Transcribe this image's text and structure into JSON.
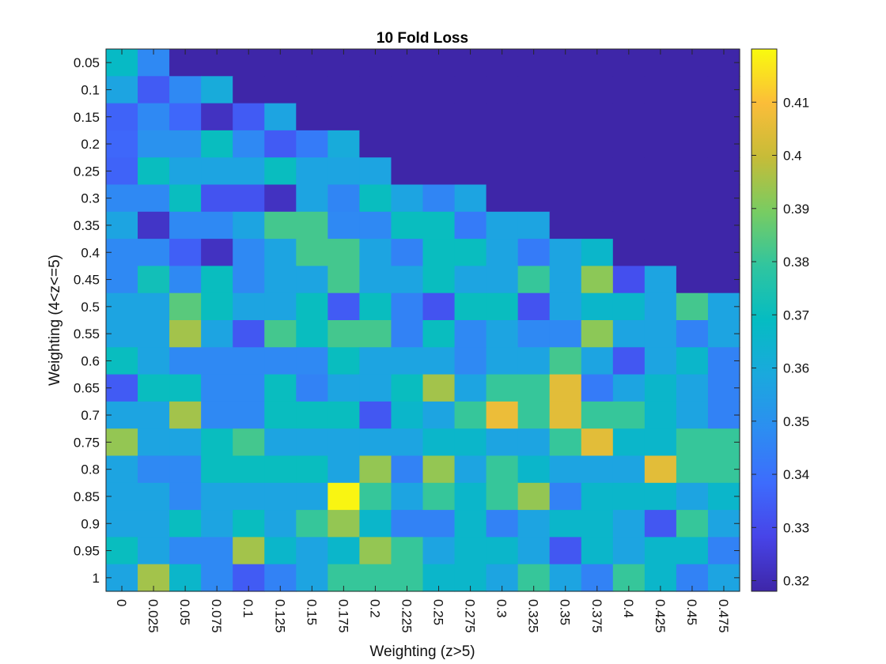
{
  "chart_data": {
    "type": "heatmap",
    "title": "10 Fold Loss",
    "xlabel": "Weighting (z>5)",
    "ylabel": "Weighting (4<z<=5)",
    "x": [
      "0",
      "0.025",
      "0.05",
      "0.075",
      "0.1",
      "0.125",
      "0.15",
      "0.175",
      "0.2",
      "0.225",
      "0.25",
      "0.275",
      "0.3",
      "0.325",
      "0.35",
      "0.375",
      "0.4",
      "0.425",
      "0.45",
      "0.475"
    ],
    "y": [
      "0.05",
      "0.1",
      "0.15",
      "0.2",
      "0.25",
      "0.3",
      "0.35",
      "0.4",
      "0.45",
      "0.5",
      "0.55",
      "0.6",
      "0.65",
      "0.7",
      "0.75",
      "0.8",
      "0.85",
      "0.9",
      "0.95",
      "1"
    ],
    "colorbar": {
      "range": [
        0.318,
        0.42
      ],
      "ticks": [
        "0.32",
        "0.33",
        "0.34",
        "0.35",
        "0.36",
        "0.37",
        "0.38",
        "0.39",
        "0.4",
        "0.41"
      ],
      "colormap": "parula"
    },
    "fill_value": 0.318,
    "values": [
      [
        0.368,
        0.347,
        null,
        null,
        null,
        null,
        null,
        null,
        null,
        null,
        null,
        null,
        null,
        null,
        null,
        null,
        null,
        null,
        null,
        null
      ],
      [
        0.357,
        0.334,
        0.347,
        0.36,
        null,
        null,
        null,
        null,
        null,
        null,
        null,
        null,
        null,
        null,
        null,
        null,
        null,
        null,
        null,
        null
      ],
      [
        0.336,
        0.347,
        0.337,
        0.322,
        0.334,
        0.357,
        null,
        null,
        null,
        null,
        null,
        null,
        null,
        null,
        null,
        null,
        null,
        null,
        null,
        null
      ],
      [
        0.337,
        0.35,
        0.35,
        0.37,
        0.347,
        0.334,
        0.343,
        0.36,
        null,
        null,
        null,
        null,
        null,
        null,
        null,
        null,
        null,
        null,
        null,
        null
      ],
      [
        0.336,
        0.37,
        0.357,
        0.357,
        0.357,
        0.37,
        0.357,
        0.357,
        0.357,
        null,
        null,
        null,
        null,
        null,
        null,
        null,
        null,
        null,
        null,
        null
      ],
      [
        0.347,
        0.347,
        0.37,
        0.332,
        0.332,
        0.322,
        0.357,
        0.346,
        0.37,
        0.357,
        0.346,
        0.357,
        null,
        null,
        null,
        null,
        null,
        null,
        null,
        null
      ],
      [
        0.357,
        0.323,
        0.347,
        0.347,
        0.357,
        0.382,
        0.382,
        0.347,
        0.347,
        0.37,
        0.37,
        0.343,
        0.357,
        0.357,
        null,
        null,
        null,
        null,
        null,
        null
      ],
      [
        0.347,
        0.347,
        0.335,
        0.322,
        0.347,
        0.357,
        0.382,
        0.382,
        0.357,
        0.345,
        0.37,
        0.37,
        0.357,
        0.343,
        0.357,
        0.366,
        null,
        null,
        null,
        null
      ],
      [
        0.347,
        0.372,
        0.347,
        0.37,
        0.347,
        0.357,
        0.357,
        0.382,
        0.357,
        0.357,
        0.37,
        0.357,
        0.357,
        0.38,
        0.357,
        0.392,
        0.331,
        0.357,
        null,
        null
      ],
      [
        0.357,
        0.357,
        0.385,
        0.37,
        0.357,
        0.357,
        0.37,
        0.334,
        0.37,
        0.345,
        0.332,
        0.37,
        0.37,
        0.332,
        0.357,
        0.366,
        0.366,
        0.357,
        0.382,
        0.357
      ],
      [
        0.357,
        0.357,
        0.395,
        0.357,
        0.333,
        0.382,
        0.37,
        0.382,
        0.382,
        0.345,
        0.37,
        0.347,
        0.357,
        0.347,
        0.347,
        0.392,
        0.357,
        0.357,
        0.345,
        0.357
      ],
      [
        0.37,
        0.357,
        0.347,
        0.347,
        0.347,
        0.347,
        0.347,
        0.37,
        0.357,
        0.357,
        0.357,
        0.347,
        0.357,
        0.357,
        0.382,
        0.357,
        0.333,
        0.357,
        0.366,
        0.345
      ],
      [
        0.334,
        0.37,
        0.37,
        0.347,
        0.347,
        0.37,
        0.345,
        0.357,
        0.357,
        0.37,
        0.395,
        0.357,
        0.38,
        0.38,
        0.405,
        0.343,
        0.357,
        0.366,
        0.357,
        0.345
      ],
      [
        0.357,
        0.357,
        0.395,
        0.347,
        0.347,
        0.37,
        0.37,
        0.37,
        0.333,
        0.366,
        0.357,
        0.38,
        0.407,
        0.38,
        0.405,
        0.38,
        0.38,
        0.366,
        0.357,
        0.345
      ],
      [
        0.393,
        0.357,
        0.357,
        0.37,
        0.382,
        0.357,
        0.357,
        0.357,
        0.357,
        0.357,
        0.366,
        0.366,
        0.357,
        0.357,
        0.38,
        0.405,
        0.366,
        0.366,
        0.38,
        0.38
      ],
      [
        0.357,
        0.347,
        0.347,
        0.37,
        0.37,
        0.37,
        0.37,
        0.357,
        0.393,
        0.345,
        0.393,
        0.357,
        0.38,
        0.366,
        0.357,
        0.357,
        0.357,
        0.405,
        0.38,
        0.38
      ],
      [
        0.357,
        0.357,
        0.347,
        0.357,
        0.357,
        0.357,
        0.357,
        0.419,
        0.38,
        0.357,
        0.38,
        0.366,
        0.38,
        0.393,
        0.345,
        0.366,
        0.366,
        0.366,
        0.357,
        0.366
      ],
      [
        0.357,
        0.357,
        0.37,
        0.357,
        0.37,
        0.357,
        0.38,
        0.393,
        0.366,
        0.345,
        0.345,
        0.366,
        0.345,
        0.357,
        0.366,
        0.366,
        0.357,
        0.333,
        0.38,
        0.357
      ],
      [
        0.37,
        0.357,
        0.347,
        0.347,
        0.395,
        0.366,
        0.357,
        0.366,
        0.393,
        0.38,
        0.357,
        0.366,
        0.366,
        0.357,
        0.333,
        0.366,
        0.357,
        0.366,
        0.366,
        0.345
      ],
      [
        0.357,
        0.395,
        0.366,
        0.347,
        0.334,
        0.345,
        0.357,
        0.38,
        0.38,
        0.38,
        0.366,
        0.366,
        0.357,
        0.38,
        0.357,
        0.345,
        0.38,
        0.366,
        0.345,
        0.357
      ]
    ]
  }
}
